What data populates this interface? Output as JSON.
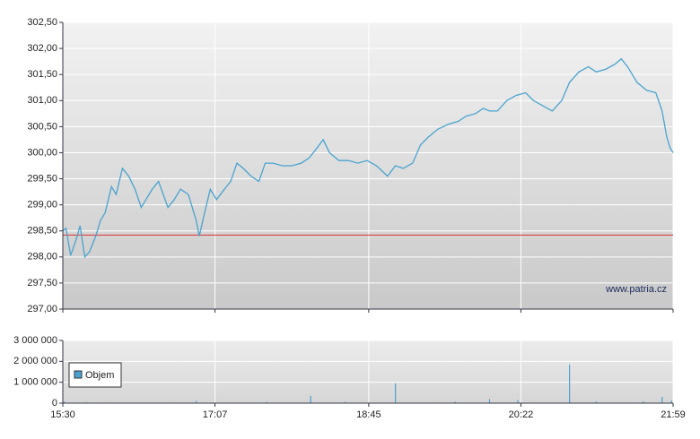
{
  "chart_data": [
    {
      "type": "line",
      "color": "#4aa3cf",
      "x": [
        "15:30",
        "15:32",
        "15:35",
        "15:39",
        "15:41",
        "15:44",
        "15:47",
        "15:51",
        "15:54",
        "15:57",
        "16:01",
        "16:04",
        "16:08",
        "16:12",
        "16:16",
        "16:20",
        "16:23",
        "16:27",
        "16:31",
        "16:34",
        "16:37",
        "16:41",
        "16:45",
        "16:50",
        "16:55",
        "16:57",
        "17:00",
        "17:04",
        "17:08",
        "17:13",
        "17:17",
        "17:21",
        "17:25",
        "17:30",
        "17:35",
        "17:39",
        "17:44",
        "17:50",
        "17:56",
        "18:02",
        "18:07",
        "18:11",
        "18:16",
        "18:20",
        "18:26",
        "18:32",
        "18:38",
        "18:44",
        "18:50",
        "18:57",
        "19:02",
        "19:07",
        "19:13",
        "19:18",
        "19:23",
        "19:29",
        "19:36",
        "19:42",
        "19:47",
        "19:53",
        "19:58",
        "20:02",
        "20:07",
        "20:13",
        "20:19",
        "20:25",
        "20:30",
        "20:36",
        "20:42",
        "20:48",
        "20:53",
        "20:59",
        "21:05",
        "21:10",
        "21:16",
        "21:22",
        "21:26",
        "21:30",
        "21:36",
        "21:42",
        "21:48",
        "21:52",
        "21:55",
        "21:57",
        "21:59"
      ],
      "values": [
        298.5,
        298.55,
        298.03,
        298.38,
        298.6,
        298.0,
        298.1,
        298.4,
        298.7,
        298.85,
        299.35,
        299.2,
        299.7,
        299.55,
        299.3,
        298.95,
        299.1,
        299.3,
        299.45,
        299.2,
        298.95,
        299.1,
        299.3,
        299.2,
        298.7,
        298.4,
        298.8,
        299.3,
        299.1,
        299.3,
        299.45,
        299.8,
        299.7,
        299.55,
        299.45,
        299.8,
        299.8,
        299.75,
        299.75,
        299.8,
        299.9,
        300.05,
        300.25,
        300.0,
        299.85,
        299.85,
        299.8,
        299.85,
        299.75,
        299.55,
        299.75,
        299.7,
        299.8,
        300.15,
        300.3,
        300.45,
        300.55,
        300.6,
        300.7,
        300.75,
        300.85,
        300.8,
        300.8,
        301.0,
        301.1,
        301.15,
        301.0,
        300.9,
        300.8,
        301.0,
        301.35,
        301.55,
        301.65,
        301.55,
        301.6,
        301.7,
        301.8,
        301.65,
        301.35,
        301.2,
        301.15,
        300.8,
        300.3,
        300.1,
        300.0
      ],
      "xlim": [
        "15:30",
        "21:59"
      ],
      "ylim": [
        297,
        302.5
      ],
      "yticks": [
        {
          "value": 297,
          "label": "297,00"
        },
        {
          "value": 297.5,
          "label": "297,50"
        },
        {
          "value": 298,
          "label": "298,00"
        },
        {
          "value": 298.5,
          "label": "298,50"
        },
        {
          "value": 299,
          "label": "299,00"
        },
        {
          "value": 299.5,
          "label": "299,50"
        },
        {
          "value": 300,
          "label": "300,00"
        },
        {
          "value": 300.5,
          "label": "300,50"
        },
        {
          "value": 301,
          "label": "301,00"
        },
        {
          "value": 301.5,
          "label": "301,50"
        },
        {
          "value": 302,
          "label": "302,00"
        },
        {
          "value": 302.5,
          "label": "302,50"
        }
      ],
      "reference_line": {
        "value": 298.42,
        "color": "#e03030"
      },
      "annotation": "www.patria.cz",
      "grid": true
    },
    {
      "type": "bar",
      "x": [
        "15:31",
        "15:45",
        "16:55",
        "17:40",
        "18:08",
        "18:30",
        "19:02",
        "19:40",
        "20:02",
        "20:20",
        "20:53",
        "21:10",
        "21:40",
        "21:52",
        "21:58"
      ],
      "series": [
        {
          "name": "Objem",
          "color": "#4aa3cf",
          "values": [
            80000,
            40000,
            110000,
            50000,
            350000,
            60000,
            950000,
            70000,
            200000,
            150000,
            1850000,
            80000,
            90000,
            300000,
            120000
          ]
        }
      ],
      "xlim": [
        "15:30",
        "21:59"
      ],
      "xticks": [
        "15:30",
        "17:07",
        "18:45",
        "20:22",
        "21:59"
      ],
      "ylim": [
        0,
        3000000
      ],
      "yticks": [
        0,
        {
          "value": 1000000,
          "label": "1 000 000"
        },
        {
          "value": 2000000,
          "label": "2 000 000"
        },
        {
          "value": 3000000,
          "label": "3 000 000"
        }
      ],
      "grid": true
    }
  ]
}
